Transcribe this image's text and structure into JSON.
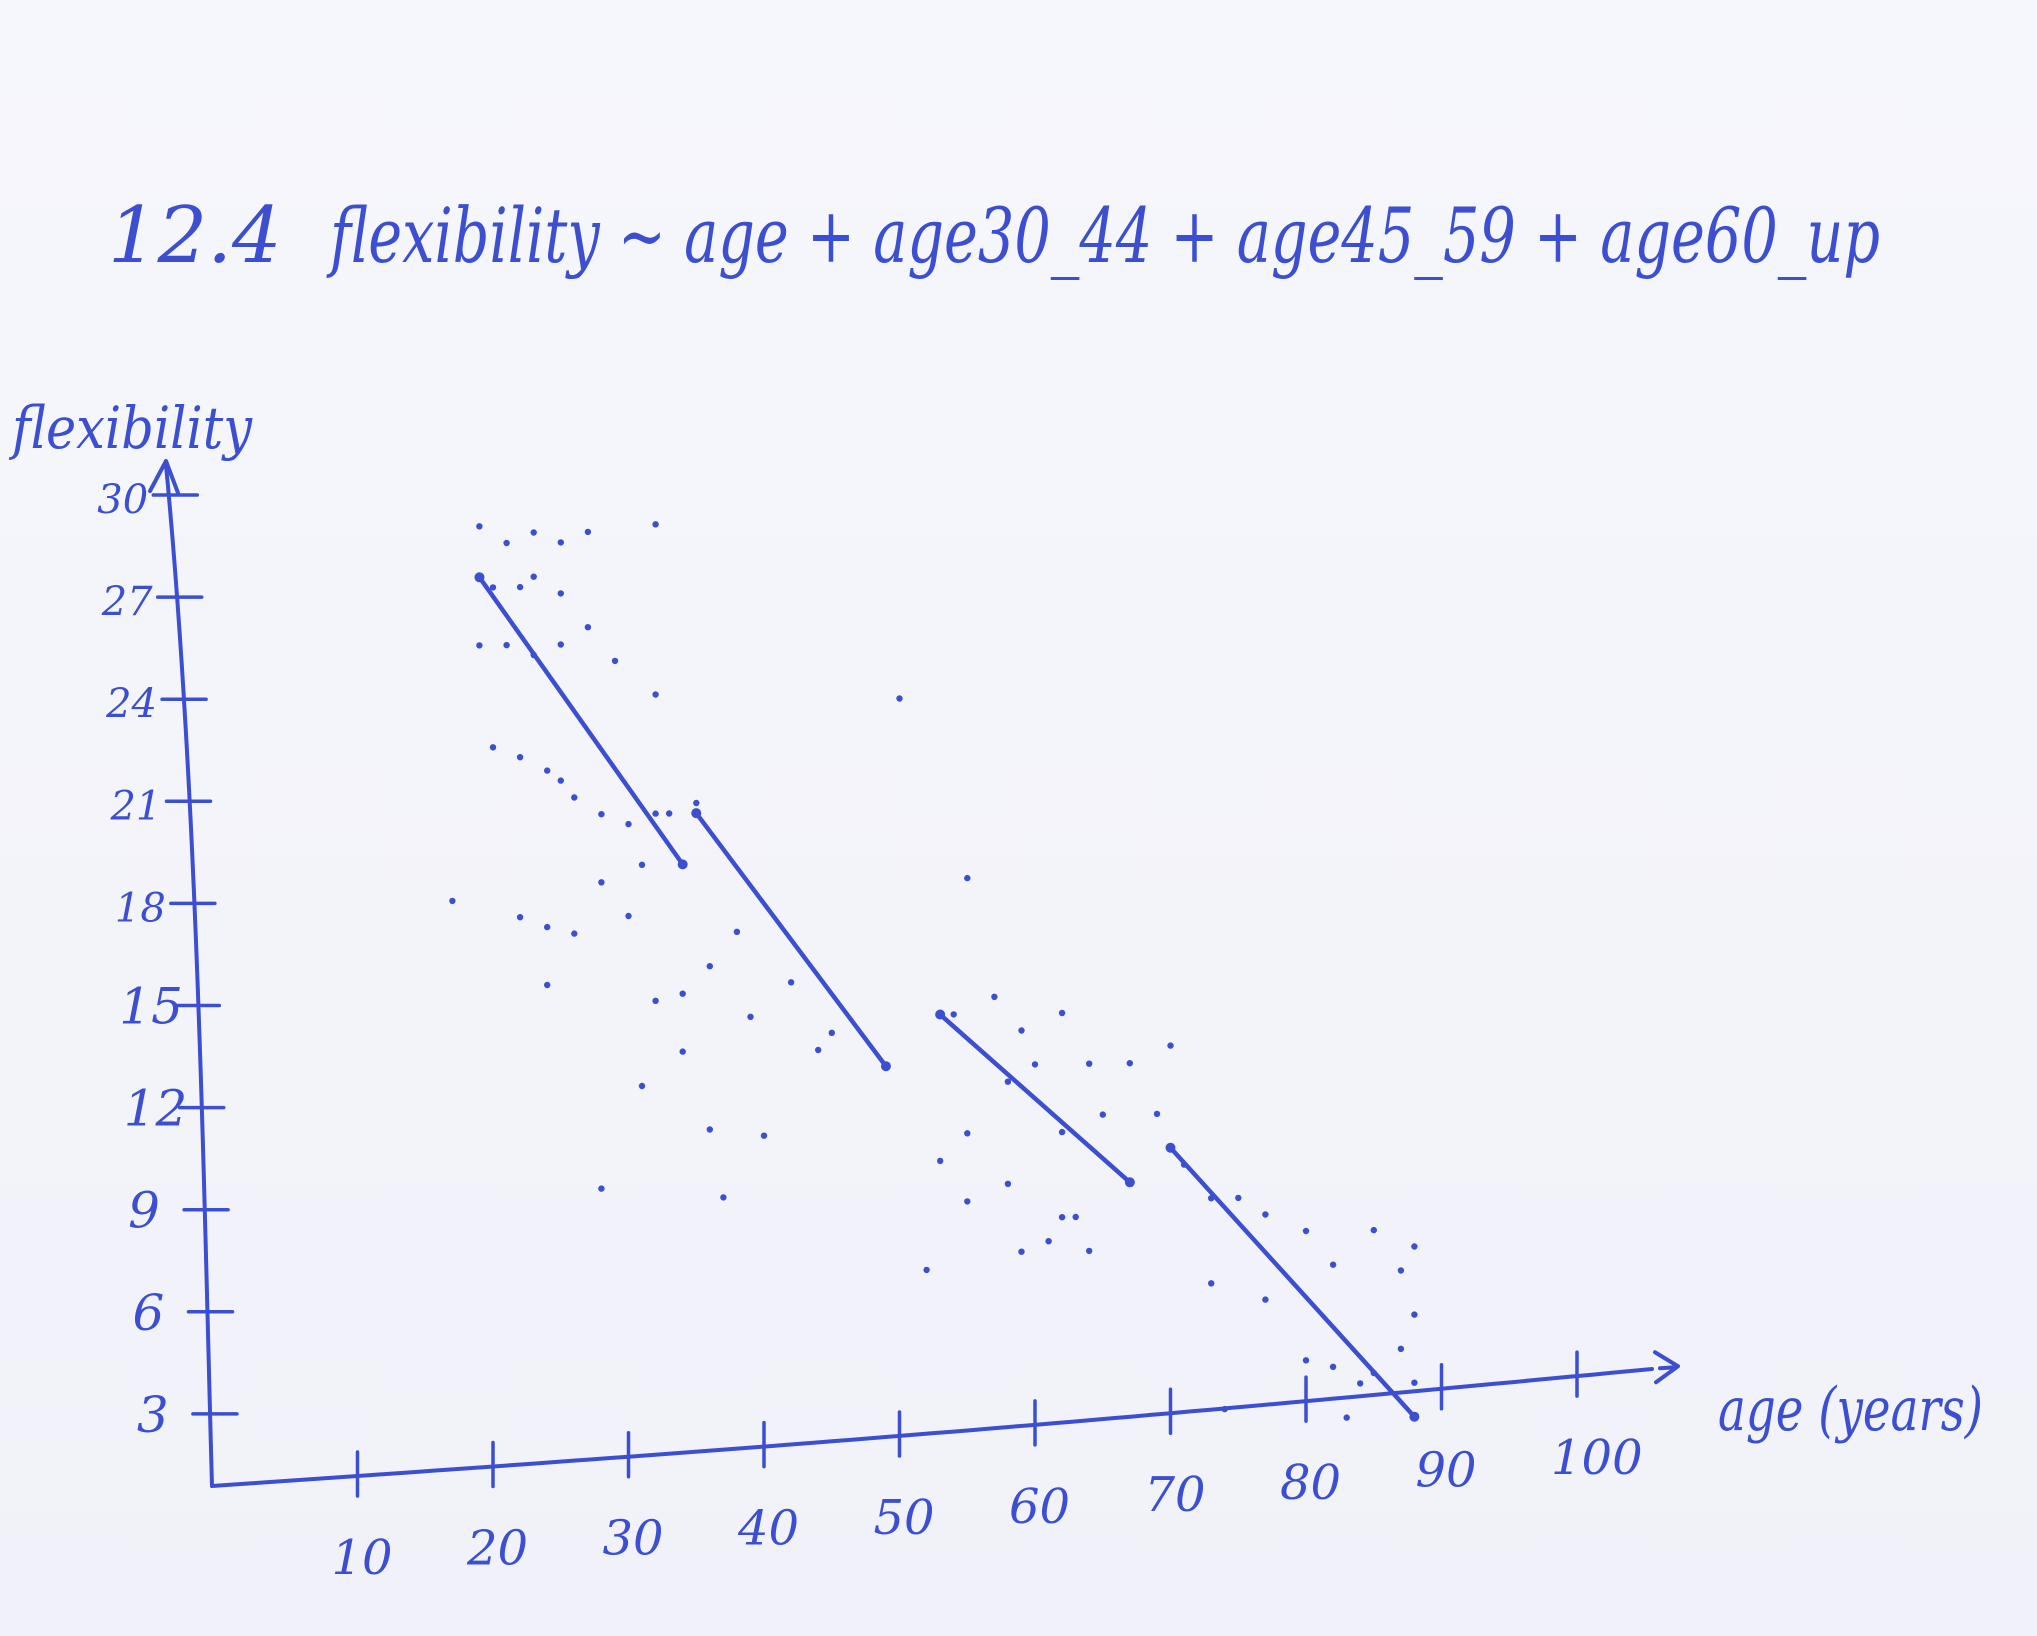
{
  "heading": {
    "number": "12.4",
    "formula": "flexibility ~ age + age30_44 + age45_59 + age60_up"
  },
  "ink_color": "#3b4fd0",
  "chart_data": {
    "type": "scatter",
    "title": "",
    "xlabel": "age (years)",
    "ylabel": "flexibility",
    "xlim": [
      0,
      100
    ],
    "ylim": [
      0,
      30
    ],
    "x_ticks": [
      10,
      20,
      30,
      40,
      50,
      60,
      70,
      80,
      90,
      100
    ],
    "y_ticks": [
      3,
      6,
      9,
      12,
      15,
      18,
      21,
      24,
      27,
      30
    ],
    "grid": false,
    "points": [
      [
        19,
        29
      ],
      [
        21,
        28.5
      ],
      [
        23,
        28.8
      ],
      [
        25,
        28.5
      ],
      [
        27,
        28.8
      ],
      [
        19,
        27.5
      ],
      [
        20,
        27.2
      ],
      [
        22,
        27.2
      ],
      [
        23,
        27.5
      ],
      [
        25,
        27
      ],
      [
        19,
        25.5
      ],
      [
        21,
        25.5
      ],
      [
        23,
        25.2
      ],
      [
        25,
        25.5
      ],
      [
        27,
        26
      ],
      [
        29,
        25
      ],
      [
        32,
        24
      ],
      [
        32,
        29
      ],
      [
        20,
        22.5
      ],
      [
        22,
        22.2
      ],
      [
        24,
        21.8
      ],
      [
        25,
        21.5
      ],
      [
        26,
        21
      ],
      [
        28,
        20.5
      ],
      [
        30,
        20.2
      ],
      [
        33,
        20.5
      ],
      [
        35,
        20.8
      ],
      [
        17,
        18
      ],
      [
        22,
        17.5
      ],
      [
        24,
        17.2
      ],
      [
        26,
        17
      ],
      [
        28,
        18.5
      ],
      [
        30,
        17.5
      ],
      [
        31,
        19
      ],
      [
        32,
        20.5
      ],
      [
        24,
        15.5
      ],
      [
        32,
        15
      ],
      [
        34,
        15.2
      ],
      [
        34,
        13.5
      ],
      [
        36,
        16
      ],
      [
        38,
        17
      ],
      [
        39,
        14.5
      ],
      [
        42,
        15.5
      ],
      [
        44,
        13.5
      ],
      [
        45,
        14
      ],
      [
        31,
        12.5
      ],
      [
        36,
        11.2
      ],
      [
        37,
        9.2
      ],
      [
        40,
        11
      ],
      [
        28,
        9.5
      ],
      [
        50,
        23.8
      ],
      [
        55,
        18.5
      ],
      [
        54,
        14.5
      ],
      [
        57,
        15
      ],
      [
        59,
        14
      ],
      [
        58,
        12.5
      ],
      [
        60,
        13
      ],
      [
        62,
        14.5
      ],
      [
        64,
        13
      ],
      [
        67,
        13
      ],
      [
        70,
        13.5
      ],
      [
        55,
        11
      ],
      [
        62,
        11
      ],
      [
        65,
        11.5
      ],
      [
        69,
        11.5
      ],
      [
        53,
        10.2
      ],
      [
        55,
        9
      ],
      [
        58,
        9.5
      ],
      [
        62,
        8.5
      ],
      [
        63,
        8.5
      ],
      [
        59,
        7.5
      ],
      [
        61,
        7.8
      ],
      [
        64,
        7.5
      ],
      [
        52,
        7
      ],
      [
        71,
        10
      ],
      [
        73,
        9
      ],
      [
        75,
        9
      ],
      [
        77,
        8.5
      ],
      [
        80,
        8
      ],
      [
        82,
        7
      ],
      [
        85,
        8
      ],
      [
        87,
        6.8
      ],
      [
        88,
        5.5
      ],
      [
        88,
        7.5
      ],
      [
        73,
        6.5
      ],
      [
        77,
        6
      ],
      [
        80,
        4.2
      ],
      [
        82,
        4
      ],
      [
        84,
        3.5
      ],
      [
        85,
        3.8
      ],
      [
        87,
        4.5
      ],
      [
        88,
        3.5
      ],
      [
        74,
        2.8
      ],
      [
        83,
        2.5
      ]
    ],
    "fitted_segments": [
      {
        "x": [
          19,
          34
        ],
        "y": [
          27.5,
          19
        ]
      },
      {
        "x": [
          35,
          49
        ],
        "y": [
          20.5,
          13
        ]
      },
      {
        "x": [
          53,
          67
        ],
        "y": [
          14.5,
          9.5
        ]
      },
      {
        "x": [
          70,
          88
        ],
        "y": [
          10.5,
          2.5
        ]
      }
    ]
  }
}
